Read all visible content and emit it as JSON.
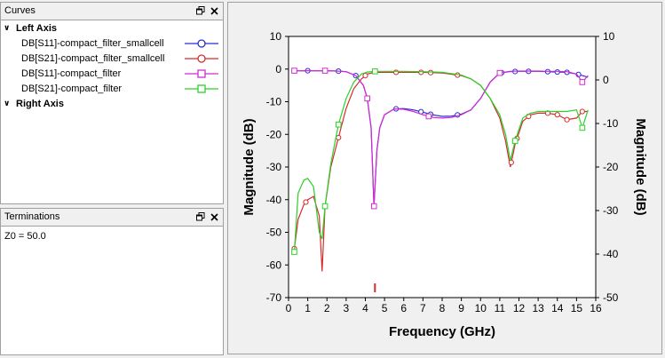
{
  "curves_panel": {
    "title": "Curves",
    "groups": [
      {
        "label": "Left Axis",
        "items": [
          {
            "label": "DB[S11]-compact_filter_smallcell",
            "color": "#2b2bd6",
            "marker": "circle"
          },
          {
            "label": "DB[S21]-compact_filter_smallcell",
            "color": "#d62b2b",
            "marker": "circle"
          },
          {
            "label": "DB[S11]-compact_filter",
            "color": "#d22bd2",
            "marker": "square"
          },
          {
            "label": "DB[S21]-compact_filter",
            "color": "#2bd22b",
            "marker": "square"
          }
        ]
      },
      {
        "label": "Right Axis",
        "items": []
      }
    ]
  },
  "terminations_panel": {
    "title": "Terminations",
    "text": "Z0 = 50.0"
  },
  "icons": {
    "float": "restore-icon",
    "close": "close-icon",
    "expand": "chevron-down-icon"
  },
  "chart_data": {
    "type": "line",
    "xlabel": "Frequency (GHz)",
    "ylabel_left": "Magnitude (dB)",
    "ylabel_right": "Magnitude (dB)",
    "xlim": [
      0,
      16
    ],
    "ylim_left": [
      -70,
      10
    ],
    "ylim_right": [
      -50,
      10
    ],
    "x_ticks": [
      "0",
      "1",
      "2",
      "3",
      "4",
      "5",
      "6",
      "7",
      "8",
      "9",
      "10",
      "11",
      "12",
      "13",
      "14",
      "15",
      "16"
    ],
    "y_ticks_left": [
      "10",
      "0",
      "-10",
      "-20",
      "-30",
      "-40",
      "-50",
      "-60",
      "-70"
    ],
    "y_ticks_right": [
      "10",
      "0",
      "-10",
      "-20",
      "-30",
      "-40",
      "-50"
    ],
    "marker_x": 4.5,
    "series": [
      {
        "name": "DB[S11]-compact_filter_smallcell",
        "color": "#2b2bd6",
        "marker": "circle",
        "x": [
          0.3,
          0.5,
          1.0,
          1.5,
          2.0,
          2.5,
          3.0,
          3.5,
          3.9,
          4.1,
          4.3,
          4.45,
          4.6,
          4.75,
          5.0,
          5.5,
          6.0,
          6.5,
          7.0,
          7.5,
          8.0,
          8.5,
          9.0,
          9.5,
          10.0,
          10.5,
          11.0,
          11.5,
          12.0,
          12.5,
          13.0,
          13.5,
          14.0,
          14.5,
          15.0,
          15.3,
          15.6
        ],
        "y": [
          -0.5,
          -0.5,
          -0.5,
          -0.5,
          -0.5,
          -0.6,
          -0.8,
          -2,
          -5,
          -9,
          -18,
          -42,
          -25,
          -18,
          -14,
          -12.2,
          -12.1,
          -12.5,
          -13.2,
          -14,
          -14.5,
          -14.4,
          -13.8,
          -12.5,
          -9,
          -4,
          -1.2,
          -0.8,
          -0.7,
          -0.7,
          -0.7,
          -0.8,
          -0.9,
          -1,
          -1.5,
          -2,
          -2.5
        ],
        "mx": [
          0.3,
          1.0,
          1.9,
          2.6,
          3.5,
          4.1,
          4.45,
          5.6,
          6.9,
          7.4,
          8.8,
          11.1,
          11.8,
          12.5,
          13.5,
          14.0,
          14.5,
          15.1
        ]
      },
      {
        "name": "DB[S21]-compact_filter_smallcell",
        "color": "#d62b2b",
        "marker": "circle",
        "x": [
          0.3,
          0.5,
          0.8,
          1.0,
          1.3,
          1.6,
          1.75,
          1.9,
          2.2,
          2.6,
          3.0,
          3.4,
          3.8,
          4.1,
          4.5,
          5.0,
          6.0,
          7.0,
          8.0,
          9.0,
          9.5,
          10.0,
          10.5,
          11.0,
          11.3,
          11.55,
          11.8,
          12.2,
          12.6,
          13.0,
          13.5,
          14.0,
          14.5,
          15.0,
          15.3,
          15.6
        ],
        "y": [
          -55,
          -46,
          -41.5,
          -40,
          -39,
          -45,
          -62,
          -42,
          -30,
          -21,
          -12,
          -6,
          -3,
          -1.5,
          -1,
          -1,
          -1,
          -1,
          -1.2,
          -2,
          -3,
          -5,
          -9,
          -15,
          -22,
          -30,
          -23,
          -16,
          -14,
          -13.5,
          -13.5,
          -14,
          -15.5,
          -15,
          -13,
          -13
        ],
        "mx": [
          0.3,
          0.9,
          1.9,
          2.6,
          4.0,
          5.6,
          6.9,
          7.4,
          8.8,
          11.6,
          11.9,
          12.5,
          13.5,
          14.0,
          14.5,
          15.3
        ]
      },
      {
        "name": "DB[S11]-compact_filter",
        "color": "#d22bd2",
        "marker": "square",
        "x": [
          0.3,
          0.5,
          1.0,
          1.5,
          2.0,
          2.5,
          3.0,
          3.5,
          3.9,
          4.1,
          4.3,
          4.45,
          4.6,
          4.75,
          5.0,
          5.5,
          6.0,
          6.5,
          7.0,
          7.5,
          8.0,
          8.5,
          9.0,
          9.5,
          10.0,
          10.5,
          11.0,
          11.5,
          12.0,
          12.5,
          13.0,
          13.5,
          14.0,
          14.5,
          15.0,
          15.3,
          15.6
        ],
        "y": [
          -0.5,
          -0.5,
          -0.5,
          -0.5,
          -0.5,
          -0.6,
          -0.8,
          -2,
          -5,
          -9,
          -18,
          -42,
          -25,
          -18,
          -14,
          -12.2,
          -12.3,
          -13,
          -14,
          -14.8,
          -15,
          -14.8,
          -14,
          -12.5,
          -9,
          -4,
          -1.2,
          -0.7,
          -0.6,
          -0.6,
          -0.6,
          -0.7,
          -0.7,
          -0.8,
          -1.5,
          -4,
          -2
        ],
        "mx": [
          0.3,
          1.9,
          4.1,
          4.45,
          7.3,
          11.0,
          15.3
        ]
      },
      {
        "name": "DB[S21]-compact_filter",
        "color": "#2bd22b",
        "marker": "square",
        "x": [
          0.3,
          0.5,
          0.8,
          1.0,
          1.3,
          1.6,
          1.75,
          1.9,
          2.2,
          2.6,
          3.0,
          3.4,
          3.8,
          4.1,
          4.5,
          5.0,
          6.0,
          7.0,
          8.0,
          9.0,
          9.5,
          10.0,
          10.5,
          11.0,
          11.3,
          11.55,
          11.8,
          12.2,
          12.6,
          13.0,
          13.5,
          14.0,
          14.5,
          15.0,
          15.3,
          15.6
        ],
        "y": [
          -56,
          -38,
          -34,
          -33.5,
          -36,
          -50,
          -52,
          -42,
          -29,
          -17,
          -9,
          -4,
          -1.5,
          -0.9,
          -0.7,
          -0.7,
          -0.7,
          -0.8,
          -1,
          -1.8,
          -3,
          -5,
          -9,
          -14,
          -20,
          -28,
          -22,
          -15,
          -13.5,
          -13,
          -13,
          -13,
          -13,
          -12.5,
          -18,
          -12.5
        ],
        "mx": [
          0.3,
          1.9,
          2.6,
          4.5,
          11.8,
          15.3
        ]
      }
    ]
  }
}
